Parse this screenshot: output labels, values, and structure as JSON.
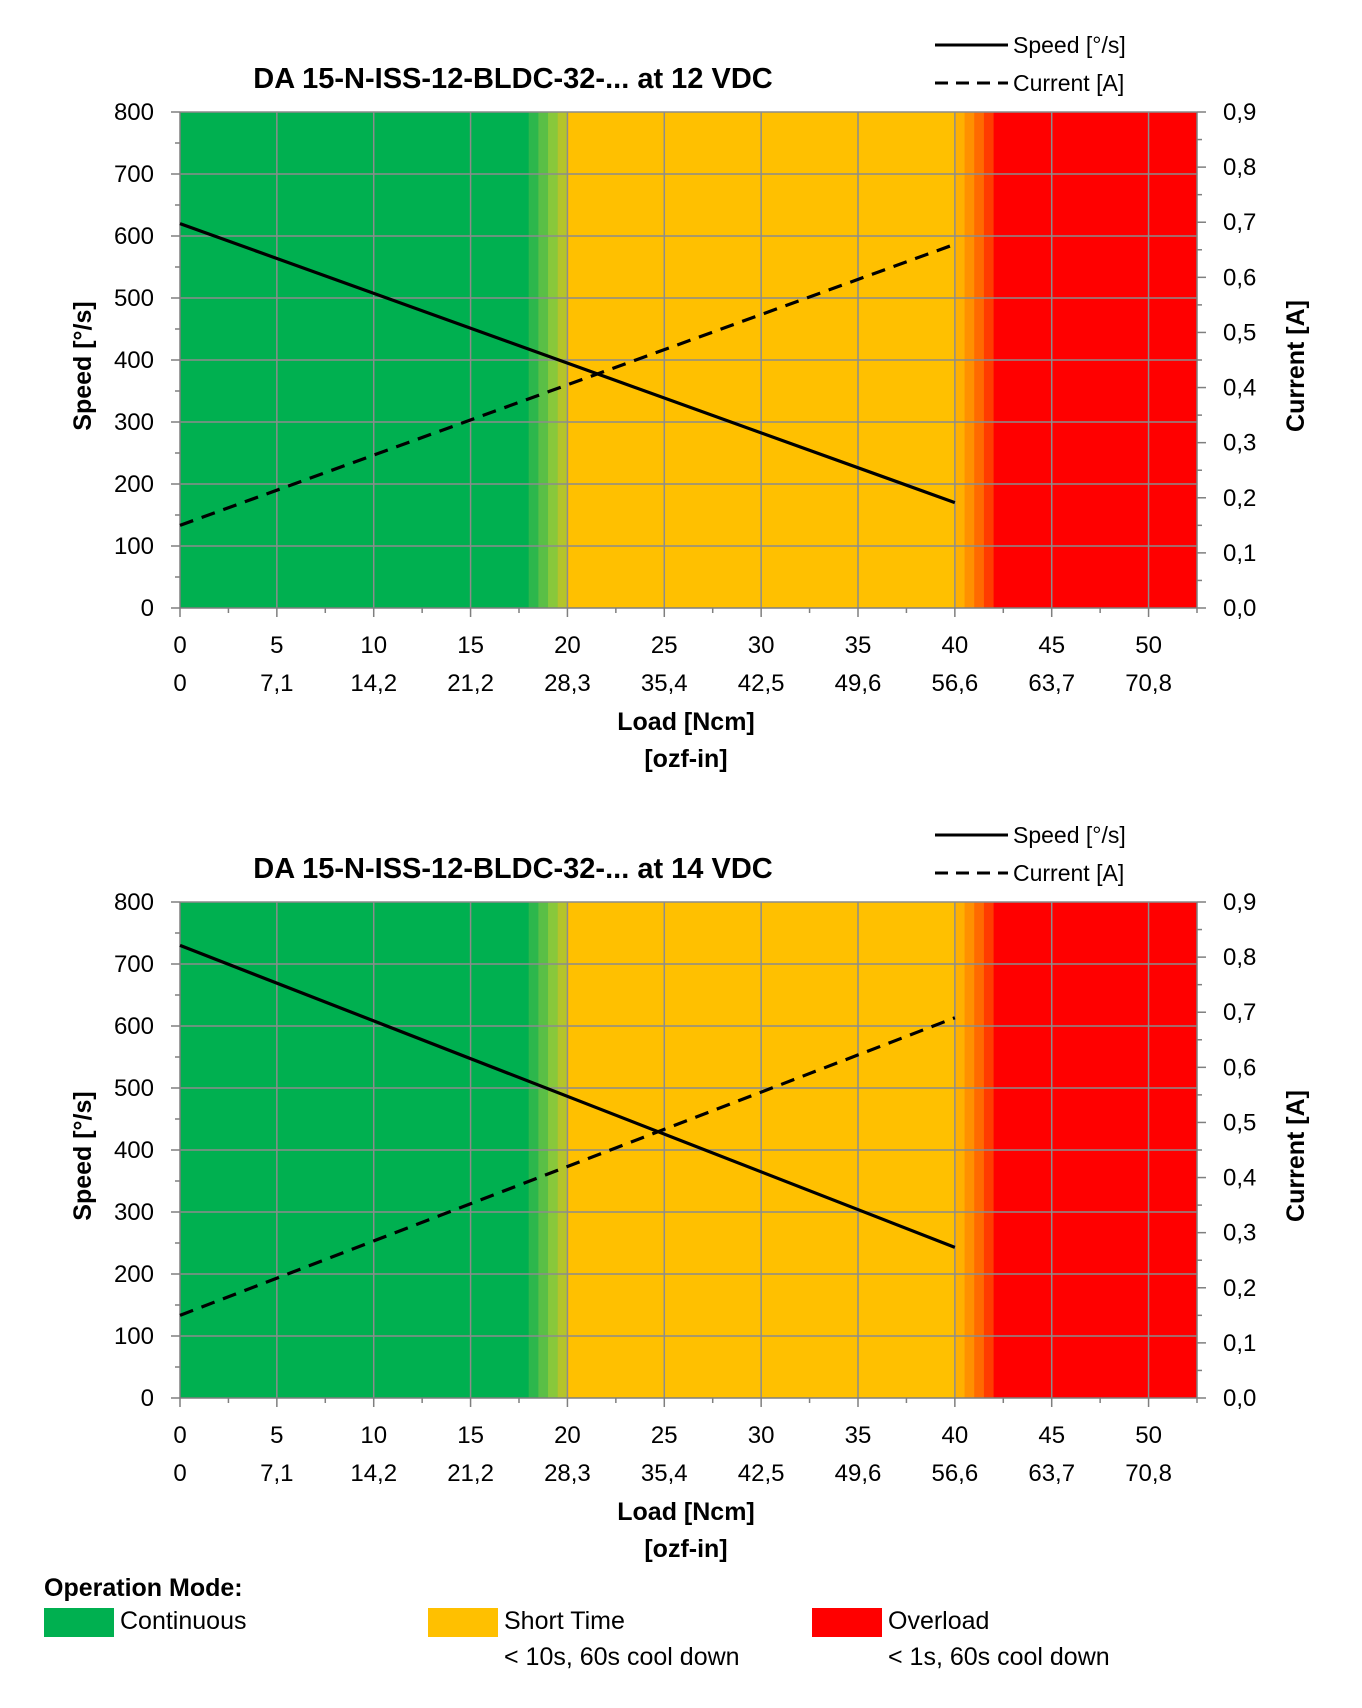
{
  "colors": {
    "continuous": "#00b050",
    "short_time": "#ffc000",
    "overload": "#ff0000",
    "transition_green": [
      "#2db74c",
      "#5abf46",
      "#88c83b",
      "#b5c42a"
    ],
    "transition_orange": [
      "#ffb000",
      "#ff9000",
      "#ff6a00",
      "#ff3c00"
    ],
    "grid": "#8c8c8c",
    "line": "#000000"
  },
  "chart_data": [
    {
      "type": "line",
      "title": "DA 15-N-ISS-12-BLDC-32-... at 12 VDC",
      "xlabel": "Load [Ncm]",
      "xlabel2": "[ozf-in]",
      "ylabel": "Speed [°/s]",
      "y2label": "Current [A]",
      "xlim": [
        0,
        52.5
      ],
      "ylim": [
        0,
        800
      ],
      "y2lim": [
        0,
        0.9
      ],
      "x_ticks": [
        0,
        5,
        10,
        15,
        20,
        25,
        30,
        35,
        40,
        45,
        50
      ],
      "x_tick_labels": [
        "0",
        "5",
        "10",
        "15",
        "20",
        "25",
        "30",
        "35",
        "40",
        "45",
        "50"
      ],
      "x2_tick_labels": [
        "0",
        "7,1",
        "14,2",
        "21,2",
        "28,3",
        "35,4",
        "42,5",
        "49,6",
        "56,6",
        "63,7",
        "70,8"
      ],
      "y_tick_labels": [
        "0",
        "100",
        "200",
        "300",
        "400",
        "500",
        "600",
        "700",
        "800"
      ],
      "y2_tick_labels": [
        "0,0",
        "0,1",
        "0,2",
        "0,3",
        "0,4",
        "0,5",
        "0,6",
        "0,7",
        "0,8",
        "0,9"
      ],
      "grid": true,
      "legend_position": "top-right",
      "zones": [
        {
          "mode": "continuous",
          "from": 0,
          "to": 18
        },
        {
          "mode": "transition_green",
          "from": 18,
          "to": 20
        },
        {
          "mode": "short_time",
          "from": 20,
          "to": 40
        },
        {
          "mode": "transition_orange",
          "from": 40,
          "to": 42
        },
        {
          "mode": "overload",
          "from": 42,
          "to": 52.5
        }
      ],
      "series": [
        {
          "name": "Speed [°/s]",
          "axis": "left",
          "style": "solid",
          "x": [
            0,
            40
          ],
          "y": [
            620,
            170
          ]
        },
        {
          "name": "Current [A]",
          "axis": "right",
          "style": "dashed",
          "x": [
            0,
            40
          ],
          "y": [
            0.15,
            0.66
          ]
        }
      ]
    },
    {
      "type": "line",
      "title": "DA 15-N-ISS-12-BLDC-32-... at 14 VDC",
      "xlabel": "Load [Ncm]",
      "xlabel2": "[ozf-in]",
      "ylabel": "Speed [°/s]",
      "y2label": "Current [A]",
      "xlim": [
        0,
        52.5
      ],
      "ylim": [
        0,
        800
      ],
      "y2lim": [
        0,
        0.9
      ],
      "x_ticks": [
        0,
        5,
        10,
        15,
        20,
        25,
        30,
        35,
        40,
        45,
        50
      ],
      "x_tick_labels": [
        "0",
        "5",
        "10",
        "15",
        "20",
        "25",
        "30",
        "35",
        "40",
        "45",
        "50"
      ],
      "x2_tick_labels": [
        "0",
        "7,1",
        "14,2",
        "21,2",
        "28,3",
        "35,4",
        "42,5",
        "49,6",
        "56,6",
        "63,7",
        "70,8"
      ],
      "y_tick_labels": [
        "0",
        "100",
        "200",
        "300",
        "400",
        "500",
        "600",
        "700",
        "800"
      ],
      "y2_tick_labels": [
        "0,0",
        "0,1",
        "0,2",
        "0,3",
        "0,4",
        "0,5",
        "0,6",
        "0,7",
        "0,8",
        "0,9"
      ],
      "grid": true,
      "legend_position": "top-right",
      "zones": [
        {
          "mode": "continuous",
          "from": 0,
          "to": 18
        },
        {
          "mode": "transition_green",
          "from": 18,
          "to": 20
        },
        {
          "mode": "short_time",
          "from": 20,
          "to": 40
        },
        {
          "mode": "transition_orange",
          "from": 40,
          "to": 42
        },
        {
          "mode": "overload",
          "from": 42,
          "to": 52.5
        }
      ],
      "series": [
        {
          "name": "Speed [°/s]",
          "axis": "left",
          "style": "solid",
          "x": [
            0,
            40
          ],
          "y": [
            730,
            243
          ]
        },
        {
          "name": "Current [A]",
          "axis": "right",
          "style": "dashed",
          "x": [
            0,
            40
          ],
          "y": [
            0.15,
            0.69
          ]
        }
      ]
    }
  ],
  "legend": {
    "title": "Operation Mode:",
    "items": [
      {
        "mode": "continuous",
        "label": "Continuous",
        "sub": ""
      },
      {
        "mode": "short_time",
        "label": "Short Time",
        "sub": "< 10s, 60s cool down"
      },
      {
        "mode": "overload",
        "label": "Overload",
        "sub": "< 1s, 60s cool down"
      }
    ]
  }
}
